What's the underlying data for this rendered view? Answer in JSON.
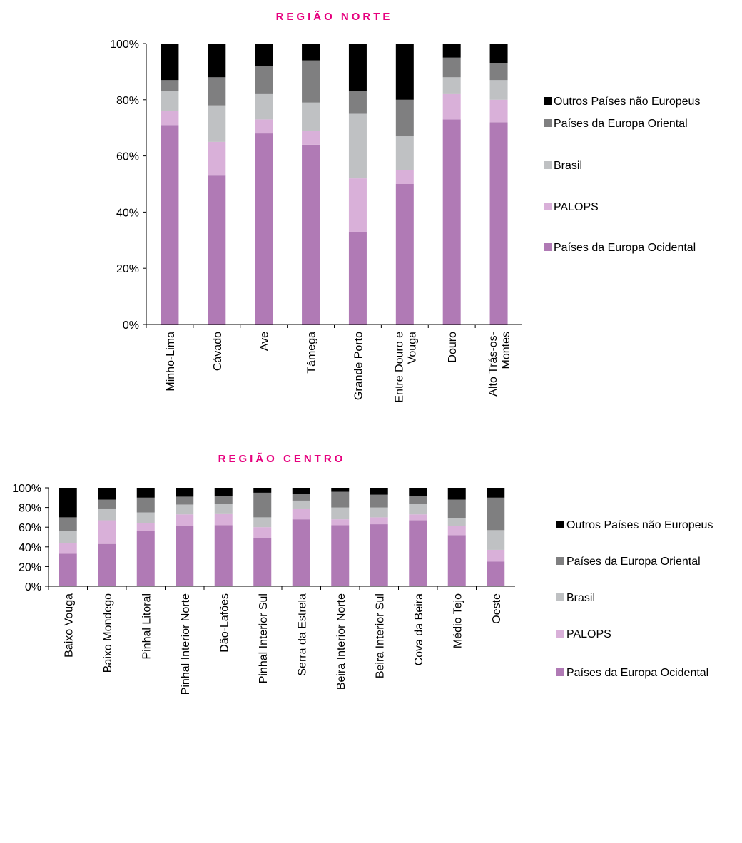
{
  "chart_data": [
    {
      "type": "stacked_bar",
      "title": "REGIÃO NORTE",
      "categories": [
        "Minho-Lima",
        "Cávado",
        "Ave",
        "Tâmega",
        "Grande Porto",
        "Entre Douro e Vouga",
        "Douro",
        "Alto Trás-os-Montes"
      ],
      "series": [
        {
          "name": "Países da Europa Ocidental",
          "color": "#b07ab5",
          "values": [
            71,
            53,
            68,
            64,
            33,
            50,
            73,
            72
          ]
        },
        {
          "name": "PALOPS",
          "color": "#d9b0d9",
          "values": [
            5,
            12,
            5,
            5,
            19,
            5,
            9,
            8
          ]
        },
        {
          "name": "Brasil",
          "color": "#bfc1c3",
          "values": [
            7,
            13,
            9,
            10,
            23,
            12,
            6,
            7
          ]
        },
        {
          "name": "Países da Europa Oriental",
          "color": "#7f7f80",
          "values": [
            4,
            10,
            10,
            15,
            8,
            13,
            7,
            6
          ]
        },
        {
          "name": "Outros Países não Europeus",
          "color": "#000000",
          "values": [
            13,
            12,
            8,
            6,
            17,
            20,
            5,
            7
          ]
        }
      ],
      "ylim": [
        0,
        100
      ],
      "yticks": [
        {
          "value": 0,
          "label": "0%"
        },
        {
          "value": 20,
          "label": "20%"
        },
        {
          "value": 40,
          "label": "40%"
        },
        {
          "value": 60,
          "label": "60%"
        },
        {
          "value": 80,
          "label": "80%"
        },
        {
          "value": 100,
          "label": "100%"
        }
      ],
      "legend": "right"
    },
    {
      "type": "stacked_bar",
      "title": "REGIÃO CENTRO",
      "categories": [
        "Baixo Vouga",
        "Baixo Mondego",
        "Pinhal Litoral",
        "Pinhal Interior Norte",
        "Dão-Lafões",
        "Pinhal Interior Sul",
        "Serra da Estrela",
        "Beira Interior Norte",
        "Beira Interior Sul",
        "Cova da Beira",
        "Médio Tejo",
        "Oeste"
      ],
      "series": [
        {
          "name": "Países da Europa Ocidental",
          "color": "#b07ab5",
          "values": [
            33,
            43,
            56,
            61,
            62,
            49,
            68,
            62,
            63,
            67,
            52,
            25
          ]
        },
        {
          "name": "PALOPS",
          "color": "#d9b0d9",
          "values": [
            11,
            24,
            8,
            12,
            12,
            11,
            11,
            6,
            7,
            6,
            9,
            12
          ]
        },
        {
          "name": "Brasil",
          "color": "#bfc1c3",
          "values": [
            12,
            12,
            11,
            10,
            10,
            10,
            8,
            12,
            10,
            11,
            8,
            20
          ]
        },
        {
          "name": "Países da Europa Oriental",
          "color": "#7f7f80",
          "values": [
            14,
            9,
            15,
            8,
            8,
            25,
            7,
            16,
            13,
            8,
            19,
            33
          ]
        },
        {
          "name": "Outros Países não Europeus",
          "color": "#000000",
          "values": [
            30,
            12,
            10,
            9,
            8,
            5,
            6,
            4,
            7,
            8,
            12,
            10
          ]
        }
      ],
      "ylim": [
        0,
        100
      ],
      "yticks": [
        {
          "value": 0,
          "label": "0%"
        },
        {
          "value": 20,
          "label": "20%"
        },
        {
          "value": 40,
          "label": "40%"
        },
        {
          "value": 60,
          "label": "60%"
        },
        {
          "value": 80,
          "label": "80%"
        },
        {
          "value": 100,
          "label": "100%"
        }
      ],
      "legend": "right"
    }
  ]
}
